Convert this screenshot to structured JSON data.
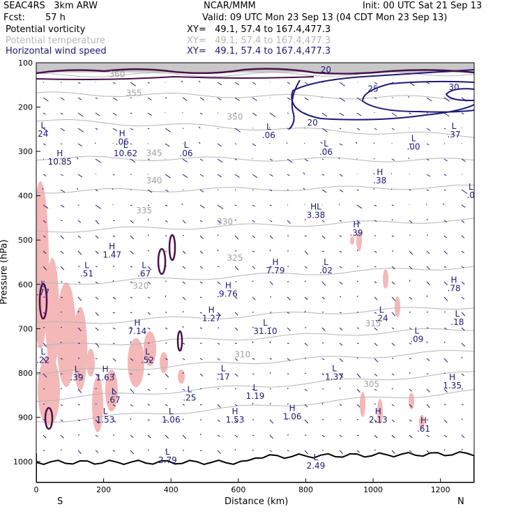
{
  "header": {
    "model": "SEAC4RS   3km ARW",
    "center": "NCAR/MMM",
    "init": "Init: 00 UTC Sat 21 Sep 13",
    "fcst_label": "Fcst:",
    "fcst_value": "57 h",
    "valid": "Valid: 09 UTC Mon 23 Sep 13 (04 CDT Mon 23 Sep 13)"
  },
  "fields": [
    {
      "name": "Potential vorticity",
      "xy": "XY=   49.1, 57.4 to 167.4,477.3",
      "color": "#000000"
    },
    {
      "name": "Potential temperature",
      "xy": "XY=   49.1, 57.4 to 167.4,477.3",
      "color": "#b4b4b4"
    },
    {
      "name": "Horizontal wind speed",
      "xy": "XY=   49.1, 57.4 to 167.4,477.3",
      "color": "#1a1a78"
    }
  ],
  "chart_data": {
    "type": "cross-section",
    "xlabel": "Distance (km)",
    "ylabel": "Pressure (hPa)",
    "x_ticks": [
      0,
      200,
      400,
      600,
      800,
      1000,
      1200
    ],
    "y_ticks": [
      100,
      200,
      300,
      400,
      500,
      600,
      700,
      800,
      900,
      1000
    ],
    "xlim": [
      0,
      1300
    ],
    "ylim": [
      1050,
      100
    ],
    "left_end": "S",
    "right_end": "N",
    "theta_contours": [
      {
        "label": "305",
        "x": 995,
        "p": 832
      },
      {
        "label": "310",
        "x": 612,
        "p": 765
      },
      {
        "label": "315",
        "x": 1000,
        "p": 695
      },
      {
        "label": "320",
        "x": 310,
        "p": 610
      },
      {
        "label": "325",
        "x": 590,
        "p": 547
      },
      {
        "label": "330",
        "x": 560,
        "p": 465
      },
      {
        "label": "335",
        "x": 320,
        "p": 440
      },
      {
        "label": "340",
        "x": 350,
        "p": 372
      },
      {
        "label": "345",
        "x": 350,
        "p": 310
      },
      {
        "label": "350",
        "x": 590,
        "p": 228
      },
      {
        "label": "355",
        "x": 290,
        "p": 175
      },
      {
        "label": "360",
        "x": 240,
        "p": 132
      }
    ],
    "wind_speed_labels": [
      {
        "label": "20",
        "x": 820,
        "p": 242
      },
      {
        "label": "20",
        "x": 860,
        "p": 122
      },
      {
        "label": "25",
        "x": 1000,
        "p": 165
      },
      {
        "label": "30",
        "x": 1240,
        "p": 161
      }
    ],
    "pv_extrema": [
      {
        "kind": "L",
        "value": "24",
        "x": 20,
        "p": 267
      },
      {
        "kind": "H",
        "value": "10.85",
        "x": 70,
        "p": 330
      },
      {
        "kind": "H",
        "value": ".06",
        "x": 255,
        "p": 285
      },
      {
        "kind": "L",
        "value": "10.62",
        "x": 265,
        "p": 311
      },
      {
        "kind": "L",
        "value": ".06",
        "x": 445,
        "p": 311
      },
      {
        "kind": "L",
        "value": ".06",
        "x": 690,
        "p": 270
      },
      {
        "kind": "L",
        "value": ".06",
        "x": 860,
        "p": 308
      },
      {
        "kind": "H",
        "value": ".38",
        "x": 1020,
        "p": 372
      },
      {
        "kind": "HL",
        "value": "3.38",
        "x": 830,
        "p": 450
      },
      {
        "kind": "H",
        "value": ".39",
        "x": 950,
        "p": 490
      },
      {
        "kind": "L",
        "value": ".0",
        "x": 1290,
        "p": 405
      },
      {
        "kind": "L",
        "value": ".37",
        "x": 1240,
        "p": 268
      },
      {
        "kind": "L",
        "value": ".00",
        "x": 1120,
        "p": 296
      },
      {
        "kind": "H",
        "value": "1.47",
        "x": 225,
        "p": 540
      },
      {
        "kind": "L",
        "value": ".51",
        "x": 150,
        "p": 582
      },
      {
        "kind": "L",
        "value": ".67",
        "x": 320,
        "p": 582
      },
      {
        "kind": "H",
        "value": "7.79",
        "x": 710,
        "p": 575
      },
      {
        "kind": "L",
        "value": ".02",
        "x": 860,
        "p": 575
      },
      {
        "kind": "H",
        "value": ".78",
        "x": 1240,
        "p": 615
      },
      {
        "kind": "L",
        "value": ".77",
        "x": 20,
        "p": 625
      },
      {
        "kind": "H",
        "value": "9.76",
        "x": 570,
        "p": 628
      },
      {
        "kind": "H",
        "value": "1.27",
        "x": 520,
        "p": 683
      },
      {
        "kind": "L",
        "value": ".24",
        "x": 1025,
        "p": 683
      },
      {
        "kind": "H",
        "value": "7.14",
        "x": 300,
        "p": 712
      },
      {
        "kind": "L",
        "value": "31.10",
        "x": 680,
        "p": 712
      },
      {
        "kind": "L",
        "value": ".18",
        "x": 1250,
        "p": 692
      },
      {
        "kind": "L",
        "value": ".09",
        "x": 1130,
        "p": 730
      },
      {
        "kind": "L",
        "value": ".22",
        "x": 20,
        "p": 777
      },
      {
        "kind": "L",
        "value": ".52",
        "x": 330,
        "p": 777
      },
      {
        "kind": "L",
        "value": ".39",
        "x": 120,
        "p": 817
      },
      {
        "kind": "H",
        "value": "1.63",
        "x": 205,
        "p": 817
      },
      {
        "kind": "L",
        "value": ".17",
        "x": 555,
        "p": 815
      },
      {
        "kind": "L",
        "value": "1.37",
        "x": 885,
        "p": 815
      },
      {
        "kind": "H",
        "value": "1.35",
        "x": 1235,
        "p": 835
      },
      {
        "kind": "L",
        "value": ".67",
        "x": 230,
        "p": 867
      },
      {
        "kind": "L",
        "value": ".25",
        "x": 455,
        "p": 862
      },
      {
        "kind": "L",
        "value": "1.19",
        "x": 650,
        "p": 858
      },
      {
        "kind": "H",
        "value": "2.13",
        "x": 1015,
        "p": 912
      },
      {
        "kind": "L",
        "value": "1.53",
        "x": 205,
        "p": 912
      },
      {
        "kind": "L",
        "value": "1.06",
        "x": 400,
        "p": 912
      },
      {
        "kind": "H",
        "value": "1.53",
        "x": 590,
        "p": 912
      },
      {
        "kind": "H",
        "value": "1.06",
        "x": 760,
        "p": 905
      },
      {
        "kind": "H",
        "value": ".61",
        "x": 1150,
        "p": 932
      },
      {
        "kind": "L",
        "value": "2.79",
        "x": 390,
        "p": 1003
      },
      {
        "kind": "L",
        "value": "2.49",
        "x": 830,
        "p": 1016
      }
    ]
  }
}
